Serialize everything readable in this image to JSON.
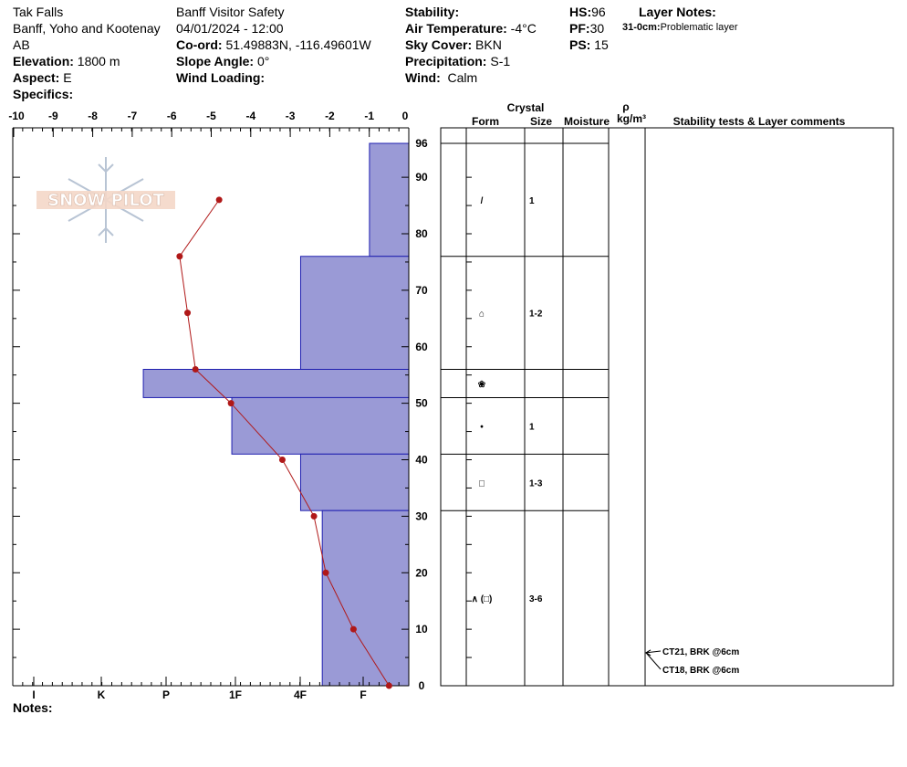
{
  "header": {
    "location": "Tak Falls",
    "range": "Banff, Yoho and Kootenay",
    "province": "AB",
    "elevation_label": "Elevation:",
    "elevation": "1800 m",
    "aspect_label": "Aspect:",
    "aspect": "E",
    "specifics_label": "Specifics:",
    "org": "Banff  Visitor Safety",
    "datetime": "04/01/2024 - 12:00",
    "coord_label": "Co-ord:",
    "coord": "51.49883N, -116.49601W",
    "slope_label": "Slope Angle:",
    "slope": "0°",
    "wind_loading_label": "Wind Loading:",
    "stability_label": "Stability:",
    "air_temp_label": "Air Temperature:",
    "air_temp": "-4°C",
    "sky_label": "Sky Cover:",
    "sky": "BKN",
    "precip_label": "Precipitation:",
    "precip": "S-1",
    "wind_label": "Wind:",
    "wind": "Calm",
    "hs_label": "HS:",
    "hs": "96",
    "pf_label": "PF:",
    "pf": "30",
    "ps_label": "PS:",
    "ps": "15",
    "layer_notes_label": "Layer Notes:",
    "layer_note_range": "31-0cm:",
    "layer_note_text": "Problematic layer",
    "notes_label": "Notes:"
  },
  "logo_text": "SNOW PILOT",
  "columns": {
    "crystal": "Crystal",
    "form": "Form",
    "size": "Size",
    "moisture": "Moisture",
    "rho": "ρ",
    "density_unit": "kg/m³",
    "comments": "Stability tests & Layer comments"
  },
  "colors": {
    "hardness_fill": "#9a9ad6",
    "hardness_stroke": "#2020b0",
    "temp_line": "#b01818"
  },
  "chart_data": {
    "type": "area",
    "temp_axis": {
      "ticks": [
        "-10",
        "-9",
        "-8",
        "-7",
        "-6",
        "-5",
        "-4",
        "-3",
        "-2",
        "-1",
        "0"
      ],
      "range": [
        -10,
        0
      ]
    },
    "height_axis": {
      "ticks": [
        "0",
        "10",
        "20",
        "30",
        "40",
        "50",
        "60",
        "70",
        "80",
        "90",
        "96"
      ],
      "range": [
        0,
        96
      ]
    },
    "hardness_axis": {
      "ticks": [
        "I",
        "K",
        "P",
        "1F",
        "4F",
        "F"
      ]
    },
    "hardness_layers": [
      {
        "top": 96,
        "bottom": 76,
        "hardness": "F",
        "scale": 1
      },
      {
        "top": 76,
        "bottom": 56,
        "hardness": "4F",
        "scale": 2.75
      },
      {
        "top": 56,
        "bottom": 51,
        "hardness": "P",
        "scale": 6.75
      },
      {
        "top": 51,
        "bottom": 41,
        "hardness": "1F",
        "scale": 4.5
      },
      {
        "top": 41,
        "bottom": 31,
        "hardness": "4F",
        "scale": 2.75
      },
      {
        "top": 31,
        "bottom": 0,
        "hardness": "4F-",
        "scale": 2.2
      }
    ],
    "temperature_profile": [
      {
        "height": 86,
        "temp": -4.8
      },
      {
        "height": 76,
        "temp": -5.8
      },
      {
        "height": 66,
        "temp": -5.6
      },
      {
        "height": 56,
        "temp": -5.4
      },
      {
        "height": 50,
        "temp": -4.5
      },
      {
        "height": 40,
        "temp": -3.2
      },
      {
        "height": 30,
        "temp": -2.4
      },
      {
        "height": 20,
        "temp": -2.1
      },
      {
        "height": 10,
        "temp": -1.4
      },
      {
        "height": 0,
        "temp": -0.5
      }
    ],
    "layer_rows": [
      {
        "top": 96,
        "bottom": 76,
        "form": "/",
        "size": "1"
      },
      {
        "top": 76,
        "bottom": 56,
        "form": "⌂",
        "size": "1-2"
      },
      {
        "top": 56,
        "bottom": 51,
        "form": "❀",
        "size": ""
      },
      {
        "top": 51,
        "bottom": 41,
        "form": "•",
        "size": "1"
      },
      {
        "top": 41,
        "bottom": 31,
        "form": "□",
        "size": "1-3"
      },
      {
        "top": 31,
        "bottom": 0,
        "form": "∧ (□)",
        "size": "3-6"
      }
    ],
    "stability_tests": [
      {
        "height": 6,
        "text": "CT21, BRK @6cm"
      },
      {
        "height": 6,
        "text": "CT18, BRK @6cm"
      }
    ]
  }
}
